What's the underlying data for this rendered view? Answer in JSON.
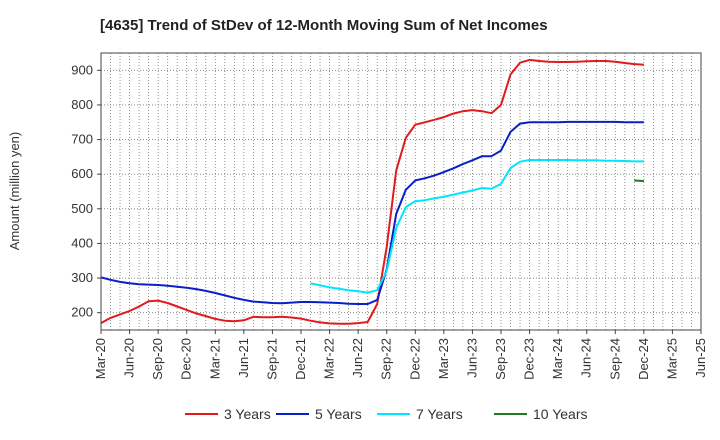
{
  "chart_data": {
    "type": "line",
    "title": "[4635]  Trend of StDev of 12-Month Moving Sum of Net Incomes",
    "ylabel": "Amount (million yen)",
    "xlabel": "",
    "ylim": [
      150,
      950
    ],
    "yticks": [
      200,
      300,
      400,
      500,
      600,
      700,
      800,
      900
    ],
    "x_tick_labels": [
      "Mar-20",
      "Jun-20",
      "Sep-20",
      "Dec-20",
      "Mar-21",
      "Jun-21",
      "Sep-21",
      "Dec-21",
      "Mar-22",
      "Jun-22",
      "Sep-22",
      "Dec-22",
      "Mar-23",
      "Jun-23",
      "Sep-23",
      "Dec-23",
      "Mar-24",
      "Jun-24",
      "Sep-24",
      "Dec-24",
      "Mar-25",
      "Jun-25"
    ],
    "grid": true,
    "legend_position": "bottom",
    "series": [
      {
        "name": "3 Years",
        "color": "#e31a1c",
        "points": [
          [
            0,
            170
          ],
          [
            1,
            185
          ],
          [
            2,
            195
          ],
          [
            3,
            205
          ],
          [
            4,
            218
          ],
          [
            5,
            233
          ],
          [
            6,
            235
          ],
          [
            7,
            228
          ],
          [
            8,
            218
          ],
          [
            9,
            208
          ],
          [
            10,
            198
          ],
          [
            11,
            190
          ],
          [
            12,
            182
          ],
          [
            13,
            177
          ],
          [
            14,
            175
          ],
          [
            15,
            178
          ],
          [
            16,
            188
          ],
          [
            17,
            187
          ],
          [
            18,
            187
          ],
          [
            19,
            188
          ],
          [
            20,
            186
          ],
          [
            21,
            183
          ],
          [
            22,
            177
          ],
          [
            23,
            172
          ],
          [
            24,
            169
          ],
          [
            25,
            168
          ],
          [
            26,
            168
          ],
          [
            27,
            170
          ],
          [
            28,
            173
          ],
          [
            29,
            225
          ],
          [
            30,
            390
          ],
          [
            31,
            610
          ],
          [
            32,
            705
          ],
          [
            33,
            743
          ],
          [
            34,
            750
          ],
          [
            35,
            757
          ],
          [
            36,
            765
          ],
          [
            37,
            775
          ],
          [
            38,
            782
          ],
          [
            39,
            785
          ],
          [
            40,
            782
          ],
          [
            41,
            776
          ],
          [
            42,
            800
          ],
          [
            43,
            888
          ],
          [
            44,
            922
          ],
          [
            45,
            930
          ],
          [
            46,
            927
          ],
          [
            47,
            925
          ],
          [
            48,
            924
          ],
          [
            49,
            924
          ],
          [
            50,
            925
          ],
          [
            51,
            926
          ],
          [
            52,
            927
          ],
          [
            53,
            927
          ],
          [
            54,
            925
          ],
          [
            55,
            921
          ],
          [
            56,
            918
          ],
          [
            57,
            916
          ]
        ]
      },
      {
        "name": "5 Years",
        "color": "#0a1fc8",
        "points": [
          [
            0,
            302
          ],
          [
            1,
            295
          ],
          [
            2,
            289
          ],
          [
            3,
            285
          ],
          [
            4,
            282
          ],
          [
            5,
            281
          ],
          [
            6,
            280
          ],
          [
            7,
            278
          ],
          [
            8,
            275
          ],
          [
            9,
            272
          ],
          [
            10,
            268
          ],
          [
            11,
            263
          ],
          [
            12,
            257
          ],
          [
            13,
            250
          ],
          [
            14,
            243
          ],
          [
            15,
            237
          ],
          [
            16,
            232
          ],
          [
            17,
            230
          ],
          [
            18,
            228
          ],
          [
            19,
            227
          ],
          [
            20,
            229
          ],
          [
            21,
            231
          ],
          [
            22,
            231
          ],
          [
            23,
            230
          ],
          [
            24,
            229
          ],
          [
            25,
            228
          ],
          [
            26,
            226
          ],
          [
            27,
            225
          ],
          [
            28,
            225
          ],
          [
            29,
            237
          ],
          [
            30,
            325
          ],
          [
            31,
            485
          ],
          [
            32,
            555
          ],
          [
            33,
            582
          ],
          [
            34,
            588
          ],
          [
            35,
            596
          ],
          [
            36,
            606
          ],
          [
            37,
            617
          ],
          [
            38,
            629
          ],
          [
            39,
            640
          ],
          [
            40,
            652
          ],
          [
            41,
            652
          ],
          [
            42,
            668
          ],
          [
            43,
            722
          ],
          [
            44,
            746
          ],
          [
            45,
            750
          ],
          [
            46,
            750
          ],
          [
            47,
            750
          ],
          [
            48,
            750
          ],
          [
            49,
            751
          ],
          [
            50,
            751
          ],
          [
            51,
            751
          ],
          [
            52,
            751
          ],
          [
            53,
            751
          ],
          [
            54,
            751
          ],
          [
            55,
            750
          ],
          [
            56,
            750
          ],
          [
            57,
            750
          ]
        ]
      },
      {
        "name": "7 Years",
        "color": "#00e5ff",
        "points": [
          [
            22,
            285
          ],
          [
            23,
            279
          ],
          [
            24,
            273
          ],
          [
            25,
            269
          ],
          [
            26,
            265
          ],
          [
            27,
            262
          ],
          [
            28,
            258
          ],
          [
            29,
            265
          ],
          [
            30,
            320
          ],
          [
            31,
            445
          ],
          [
            32,
            505
          ],
          [
            33,
            522
          ],
          [
            34,
            525
          ],
          [
            35,
            530
          ],
          [
            36,
            535
          ],
          [
            37,
            541
          ],
          [
            38,
            547
          ],
          [
            39,
            553
          ],
          [
            40,
            560
          ],
          [
            41,
            558
          ],
          [
            42,
            572
          ],
          [
            43,
            618
          ],
          [
            44,
            636
          ],
          [
            45,
            641
          ],
          [
            46,
            641
          ],
          [
            47,
            641
          ],
          [
            48,
            641
          ],
          [
            49,
            641
          ],
          [
            50,
            640
          ],
          [
            51,
            640
          ],
          [
            52,
            640
          ],
          [
            53,
            639
          ],
          [
            54,
            639
          ],
          [
            55,
            638
          ],
          [
            56,
            637
          ],
          [
            57,
            637
          ]
        ]
      },
      {
        "name": "10 Years",
        "color": "#1e7b1e",
        "points": [
          [
            56,
            582
          ],
          [
            57,
            580
          ]
        ]
      }
    ]
  }
}
